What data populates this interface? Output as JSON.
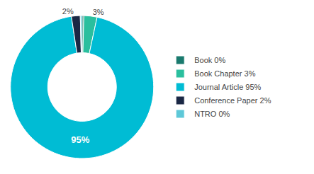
{
  "chart_data": {
    "type": "donut",
    "categories": [
      "Book 0%",
      "Book Chapter 3%",
      "Journal Article 95%",
      "Conference Paper 2%",
      "NTRO 0%"
    ],
    "values": [
      0.4,
      3,
      95,
      2,
      0.4
    ],
    "value_labels": [
      null,
      "3%",
      "95%",
      "2%",
      null
    ],
    "colors": [
      "#1a7a6e",
      "#2abf9e",
      "#00bcd4",
      "#1a2744",
      "#5ec8d8"
    ],
    "legend": "right"
  }
}
